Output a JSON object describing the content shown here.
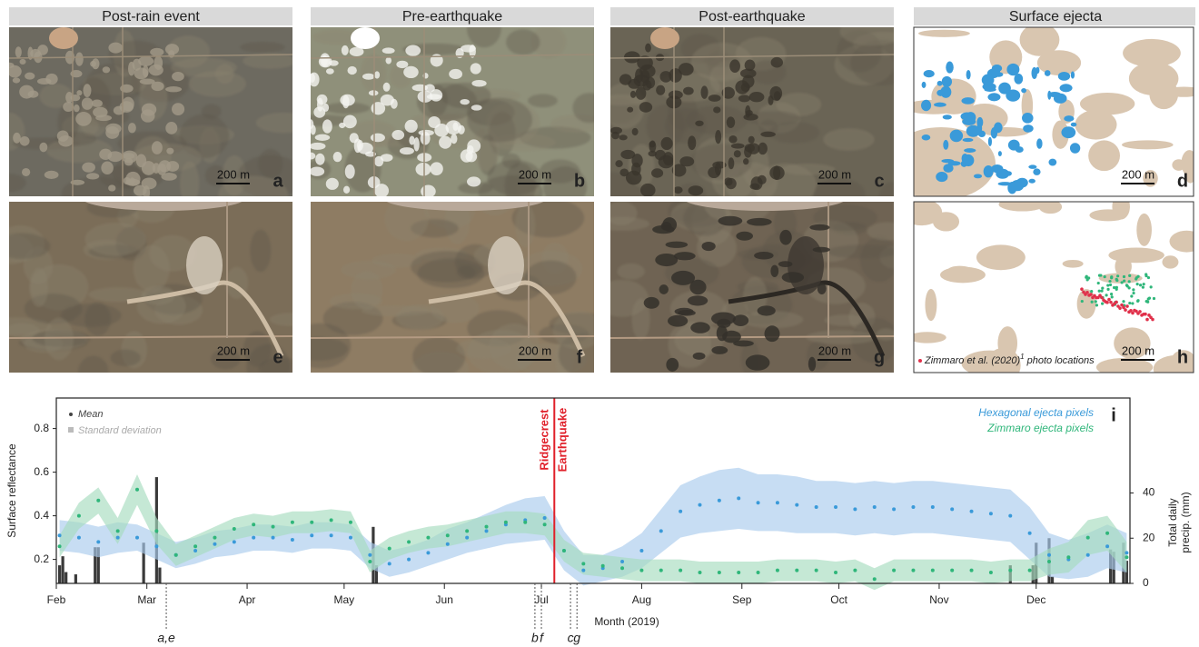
{
  "panels": {
    "titles": [
      "Post-rain event",
      "Pre-earthquake",
      "Post-earthquake",
      "Surface ejecta"
    ],
    "images": [
      {
        "letter": "a",
        "scale": "200 m"
      },
      {
        "letter": "b",
        "scale": "200 m"
      },
      {
        "letter": "c",
        "scale": "200 m"
      },
      {
        "letter": "d",
        "scale": "200 m"
      },
      {
        "letter": "e",
        "scale": "200 m"
      },
      {
        "letter": "f",
        "scale": "200 m"
      },
      {
        "letter": "g",
        "scale": "200 m"
      },
      {
        "letter": "h",
        "scale": "200 m"
      }
    ],
    "h_legend": {
      "text": "Zimmaro et al. (2020)",
      "sup": "1",
      "rest": "photo locations"
    }
  },
  "chart_data": {
    "type": "scatter",
    "panel_letter": "i",
    "ylabel": "Surface reflectance",
    "y2label": [
      "Total daily",
      "precip. (mm)"
    ],
    "xlabel": "Month (2019)",
    "xlim": [
      32,
      364
    ],
    "ylim": [
      0.09,
      0.94
    ],
    "y2lim": [
      0,
      82
    ],
    "xticks": [
      {
        "value": 32,
        "label": "Feb"
      },
      {
        "value": 60,
        "label": "Mar"
      },
      {
        "value": 91,
        "label": "Apr"
      },
      {
        "value": 121,
        "label": "May"
      },
      {
        "value": 152,
        "label": "Jun"
      },
      {
        "value": 182,
        "label": "Jul"
      },
      {
        "value": 213,
        "label": "Aug"
      },
      {
        "value": 244,
        "label": "Sep"
      },
      {
        "value": 274,
        "label": "Oct"
      },
      {
        "value": 305,
        "label": "Nov"
      },
      {
        "value": 335,
        "label": "Dec"
      }
    ],
    "yticks": [
      0.2,
      0.4,
      0.6,
      0.8
    ],
    "y2ticks": [
      0,
      20,
      40
    ],
    "legend": {
      "mean": "Mean",
      "std": "Standard deviation"
    },
    "x": [
      33,
      39,
      45,
      51,
      57,
      63,
      69,
      75,
      81,
      87,
      93,
      99,
      105,
      111,
      117,
      123,
      129,
      135,
      141,
      147,
      153,
      159,
      165,
      171,
      177,
      183,
      189,
      195,
      201,
      207,
      213,
      219,
      225,
      231,
      237,
      243,
      249,
      255,
      261,
      267,
      273,
      279,
      285,
      291,
      297,
      303,
      309,
      315,
      321,
      327,
      333,
      339,
      345,
      351,
      357,
      363
    ],
    "series": [
      {
        "name": "Hexagonal ejecta pixels",
        "color": "#3a9ad9",
        "band_color": "#a9cbec",
        "values": [
          0.31,
          0.3,
          0.28,
          0.3,
          0.3,
          0.26,
          0.22,
          0.24,
          0.27,
          0.28,
          0.3,
          0.3,
          0.29,
          0.31,
          0.31,
          0.3,
          0.22,
          0.18,
          0.2,
          0.23,
          0.27,
          0.3,
          0.33,
          0.36,
          0.38,
          0.39,
          0.24,
          0.15,
          0.16,
          0.19,
          0.24,
          0.33,
          0.42,
          0.45,
          0.47,
          0.48,
          0.46,
          0.46,
          0.45,
          0.44,
          0.44,
          0.43,
          0.44,
          0.43,
          0.44,
          0.44,
          0.43,
          0.42,
          0.41,
          0.4,
          0.32,
          0.22,
          0.2,
          0.22,
          0.26,
          0.23
        ],
        "std": [
          0.07,
          0.07,
          0.07,
          0.07,
          0.06,
          0.06,
          0.06,
          0.06,
          0.06,
          0.06,
          0.06,
          0.06,
          0.06,
          0.06,
          0.06,
          0.06,
          0.06,
          0.06,
          0.06,
          0.06,
          0.07,
          0.07,
          0.08,
          0.09,
          0.1,
          0.1,
          0.09,
          0.07,
          0.06,
          0.07,
          0.08,
          0.1,
          0.12,
          0.13,
          0.14,
          0.14,
          0.13,
          0.13,
          0.13,
          0.12,
          0.12,
          0.12,
          0.12,
          0.12,
          0.12,
          0.12,
          0.12,
          0.12,
          0.12,
          0.12,
          0.12,
          0.1,
          0.09,
          0.1,
          0.1,
          0.09
        ]
      },
      {
        "name": "Zimmaro ejecta pixels",
        "color": "#2fb67a",
        "band_color": "#a6dcbf",
        "values": [
          0.26,
          0.4,
          0.47,
          0.33,
          0.52,
          0.33,
          0.22,
          0.26,
          0.3,
          0.34,
          0.36,
          0.35,
          0.37,
          0.37,
          0.38,
          0.37,
          0.19,
          0.25,
          0.28,
          0.3,
          0.31,
          0.33,
          0.35,
          0.37,
          0.37,
          0.36,
          0.24,
          0.18,
          0.17,
          0.16,
          0.15,
          0.15,
          0.15,
          0.14,
          0.14,
          0.14,
          0.14,
          0.15,
          0.15,
          0.15,
          0.14,
          0.15,
          0.11,
          0.15,
          0.15,
          0.15,
          0.15,
          0.15,
          0.14,
          0.15,
          0.15,
          0.19,
          0.21,
          0.3,
          0.32,
          0.21
        ],
        "std": [
          0.05,
          0.06,
          0.06,
          0.06,
          0.07,
          0.06,
          0.05,
          0.05,
          0.05,
          0.05,
          0.05,
          0.05,
          0.05,
          0.05,
          0.05,
          0.05,
          0.05,
          0.05,
          0.05,
          0.05,
          0.05,
          0.05,
          0.05,
          0.05,
          0.05,
          0.05,
          0.05,
          0.05,
          0.05,
          0.05,
          0.05,
          0.05,
          0.05,
          0.05,
          0.05,
          0.05,
          0.05,
          0.05,
          0.05,
          0.05,
          0.05,
          0.05,
          0.05,
          0.05,
          0.05,
          0.05,
          0.05,
          0.05,
          0.05,
          0.05,
          0.05,
          0.06,
          0.07,
          0.08,
          0.08,
          0.07
        ]
      }
    ],
    "precipitation": {
      "axis": "y2",
      "color": "#3a3a3a",
      "x": [
        33,
        34,
        35,
        38,
        44,
        45,
        59,
        63,
        64,
        130,
        131,
        327,
        334,
        335,
        339,
        340,
        358,
        359,
        362,
        363
      ],
      "values": [
        8,
        12,
        5,
        4,
        16,
        16,
        18,
        47,
        7,
        25,
        8,
        8,
        8,
        18,
        20,
        3,
        15,
        14,
        18,
        10
      ]
    },
    "earthquake": {
      "x": 186,
      "labels": [
        "Ridgecrest",
        "Earthquake"
      ],
      "color": "#e0202a"
    },
    "image_dates": [
      {
        "x": 66,
        "label": "a,e"
      },
      {
        "x": 180,
        "label": "b"
      },
      {
        "x": 182,
        "label": "f"
      },
      {
        "x": 191,
        "label": "c"
      },
      {
        "x": 193,
        "label": "g"
      }
    ]
  }
}
